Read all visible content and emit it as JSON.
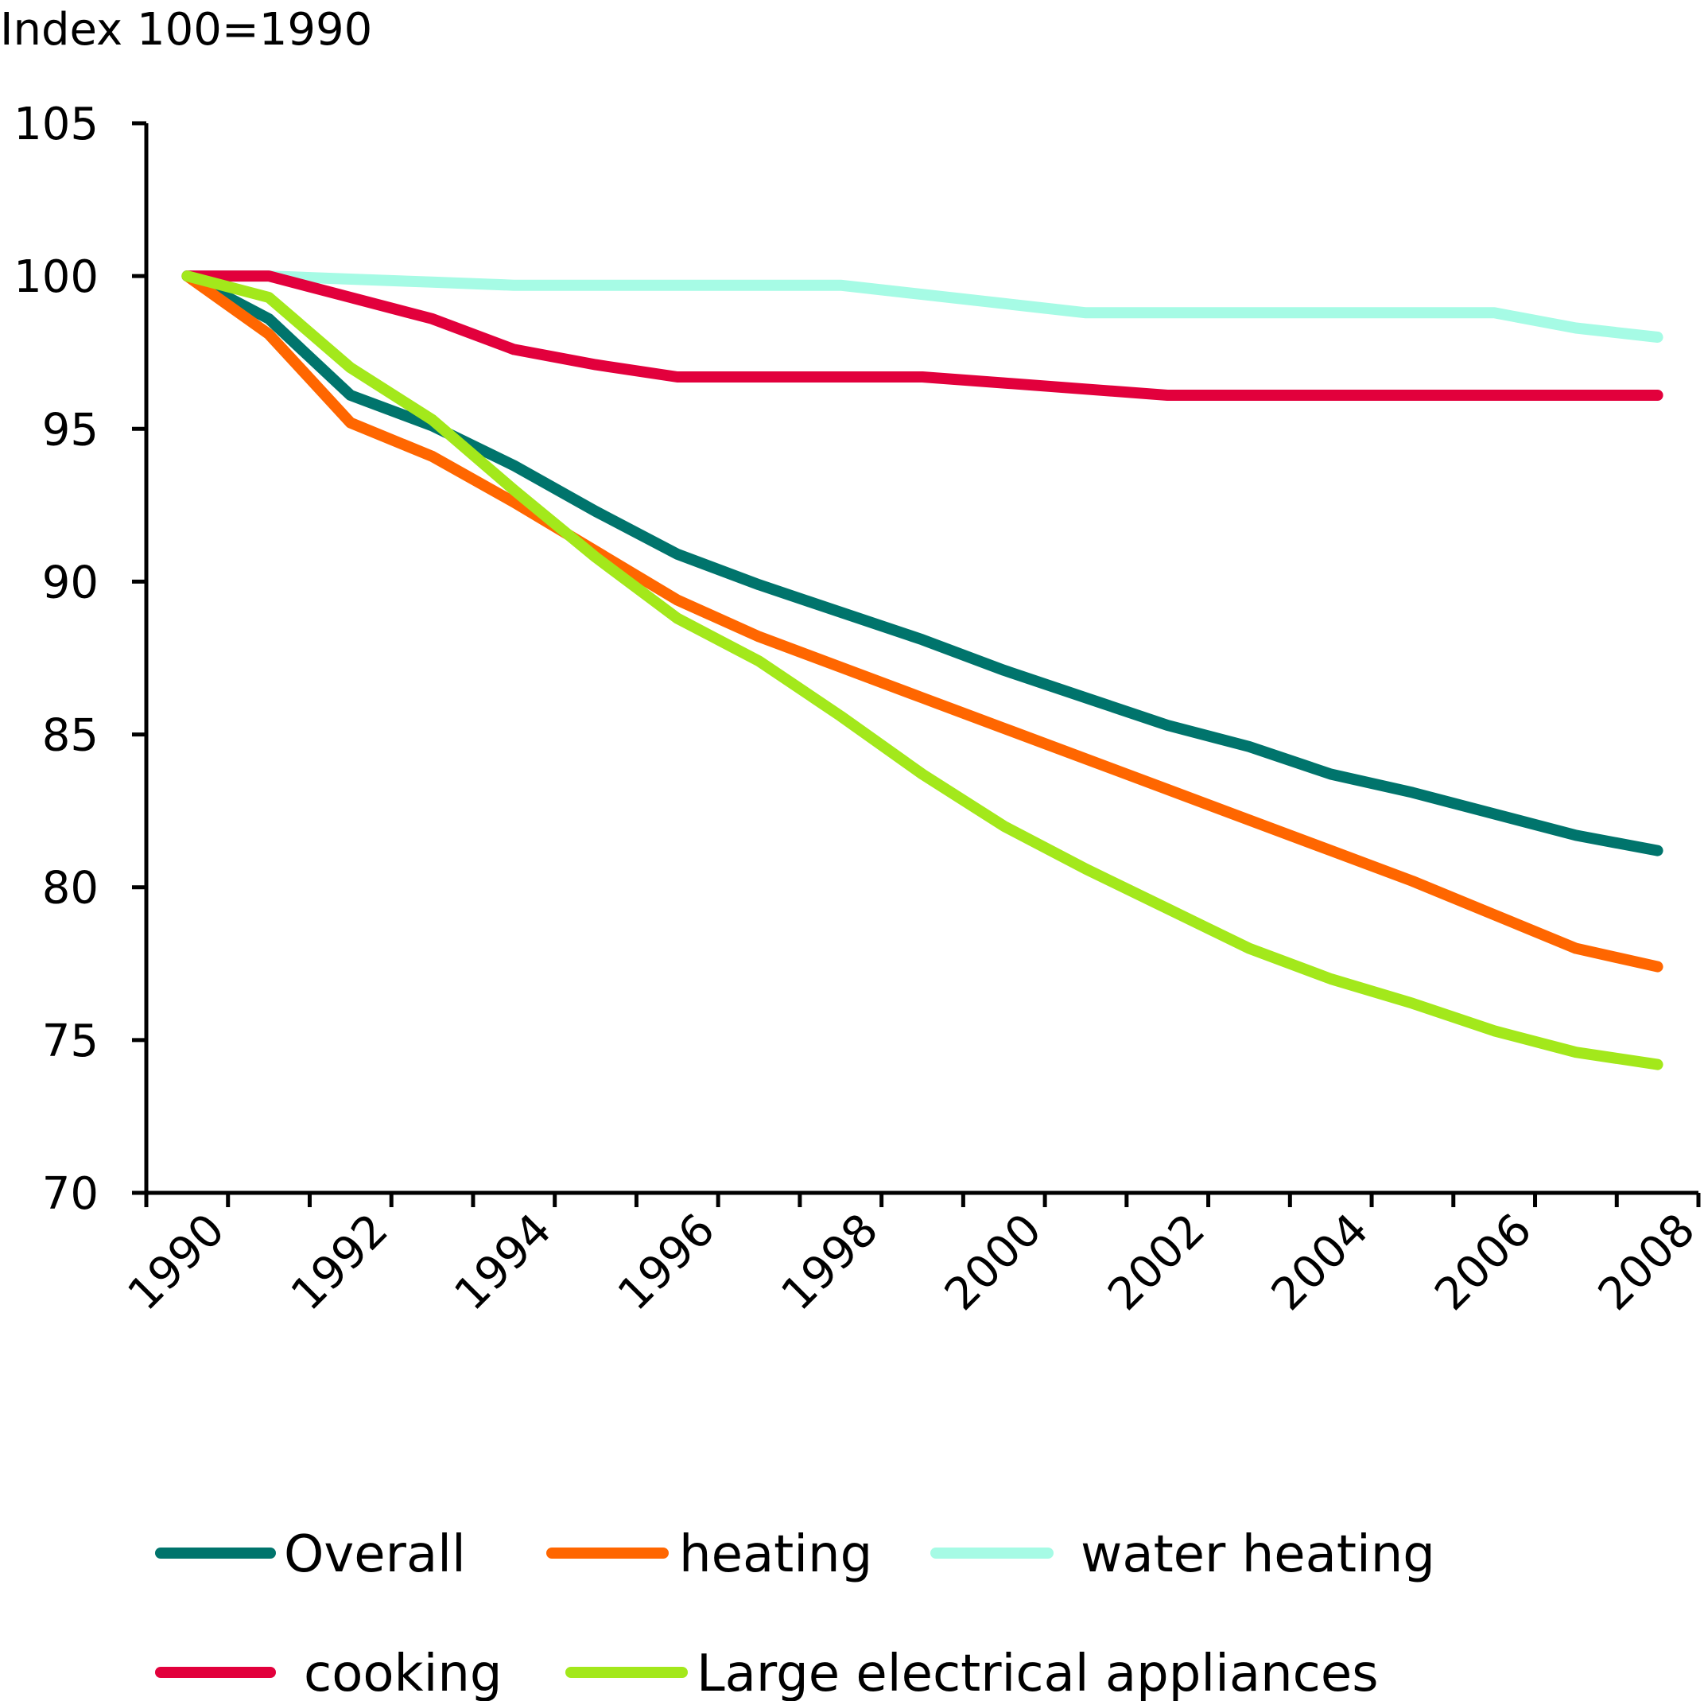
{
  "chart_data": {
    "type": "line",
    "ylabel": "Index 100=1990",
    "xlabel": "",
    "ylim": [
      70,
      105
    ],
    "yticks": [
      70,
      75,
      80,
      85,
      90,
      95,
      100,
      105
    ],
    "x": [
      1990,
      1991,
      1992,
      1993,
      1994,
      1995,
      1996,
      1997,
      1998,
      1999,
      2000,
      2001,
      2002,
      2003,
      2004,
      2005,
      2006,
      2007,
      2008
    ],
    "xtick_labels": [
      "1990",
      "1992",
      "1994",
      "1996",
      "1998",
      "2000",
      "2002",
      "2004",
      "2006",
      "2008"
    ],
    "grid": false,
    "legend_position": "bottom",
    "series": [
      {
        "name": "Overall",
        "color": "#00746c",
        "values": [
          100,
          98.6,
          96.1,
          95.1,
          93.8,
          92.3,
          90.9,
          89.9,
          89.0,
          88.1,
          87.1,
          86.2,
          85.3,
          84.6,
          83.7,
          83.1,
          82.4,
          81.7,
          81.2
        ]
      },
      {
        "name": "heating",
        "color": "#ff6600",
        "values": [
          100,
          98.1,
          95.2,
          94.1,
          92.6,
          91.0,
          89.4,
          88.2,
          87.2,
          86.2,
          85.2,
          84.2,
          83.2,
          82.2,
          81.2,
          80.2,
          79.1,
          78.0,
          77.4
        ]
      },
      {
        "name": "water heating",
        "color": "#a6fbe5",
        "values": [
          100,
          100,
          99.9,
          99.8,
          99.7,
          99.7,
          99.7,
          99.7,
          99.7,
          99.4,
          99.1,
          98.8,
          98.8,
          98.8,
          98.8,
          98.8,
          98.8,
          98.3,
          98.0
        ]
      },
      {
        "name": "cooking",
        "color": "#e2003c",
        "values": [
          100,
          100,
          99.3,
          98.6,
          97.6,
          97.1,
          96.7,
          96.7,
          96.7,
          96.7,
          96.5,
          96.3,
          96.1,
          96.1,
          96.1,
          96.1,
          96.1,
          96.1,
          96.1
        ]
      },
      {
        "name": "Large electrical appliances",
        "color": "#a3e81b",
        "values": [
          100,
          99.3,
          97.0,
          95.3,
          93.0,
          90.8,
          88.8,
          87.4,
          85.6,
          83.7,
          82.0,
          80.6,
          79.3,
          78.0,
          77.0,
          76.2,
          75.3,
          74.6,
          74.2
        ]
      }
    ]
  }
}
